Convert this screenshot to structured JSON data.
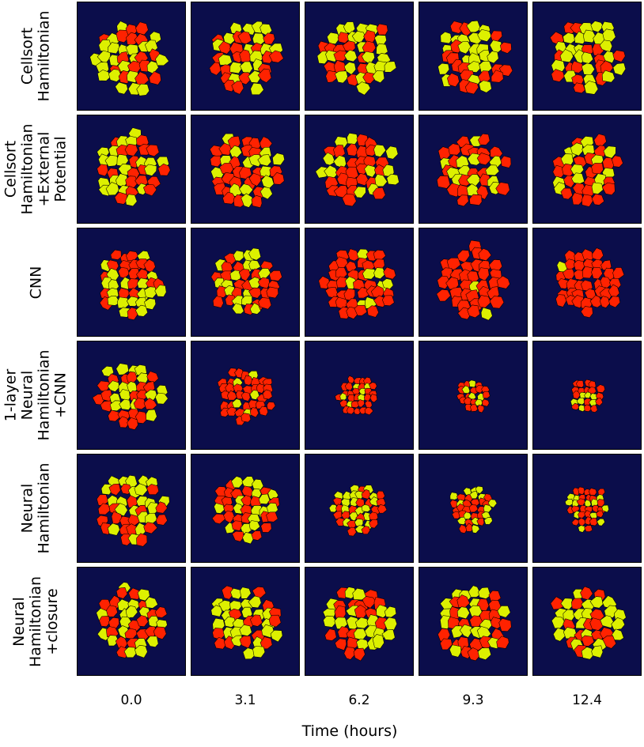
{
  "figure": {
    "rows": [
      {
        "lines": [
          "Cellsort",
          "Hamiltonian"
        ],
        "red_fraction": [
          0.5,
          0.5,
          0.5,
          0.5,
          0.5
        ],
        "size": [
          0.92,
          0.92,
          0.92,
          0.92,
          0.92
        ]
      },
      {
        "lines": [
          "Cellsort",
          "Hamiltonian",
          "+External",
          "Potential"
        ],
        "red_fraction": [
          0.5,
          0.55,
          0.55,
          0.6,
          0.6
        ],
        "size": [
          0.9,
          0.92,
          0.92,
          0.92,
          0.92
        ]
      },
      {
        "lines": [
          "CNN"
        ],
        "red_fraction": [
          0.5,
          0.7,
          0.85,
          0.9,
          0.92
        ],
        "size": [
          0.85,
          0.85,
          0.88,
          0.92,
          0.85
        ]
      },
      {
        "lines": [
          "1-layer",
          "Neural",
          "Hamiltonian",
          "+CNN"
        ],
        "red_fraction": [
          0.5,
          0.85,
          0.7,
          0.7,
          0.7
        ],
        "size": [
          0.85,
          0.7,
          0.5,
          0.42,
          0.42
        ]
      },
      {
        "lines": [
          "Neural",
          "Hamiltonian"
        ],
        "red_fraction": [
          0.5,
          0.5,
          0.55,
          0.5,
          0.45
        ],
        "size": [
          0.88,
          0.82,
          0.65,
          0.6,
          0.55
        ]
      },
      {
        "lines": [
          "Neural",
          "Hamiltonian",
          "+closure"
        ],
        "red_fraction": [
          0.45,
          0.5,
          0.5,
          0.5,
          0.5
        ],
        "size": [
          0.88,
          0.9,
          0.92,
          0.92,
          0.92
        ]
      }
    ],
    "time_ticks": [
      "0.0",
      "3.1",
      "6.2",
      "9.3",
      "12.4"
    ],
    "xlabel": "Time (hours)",
    "colors": {
      "background": "#0b0d4b",
      "cell_red": "#ff2200",
      "cell_yellow": "#ddf000",
      "membrane": "#000000"
    }
  }
}
